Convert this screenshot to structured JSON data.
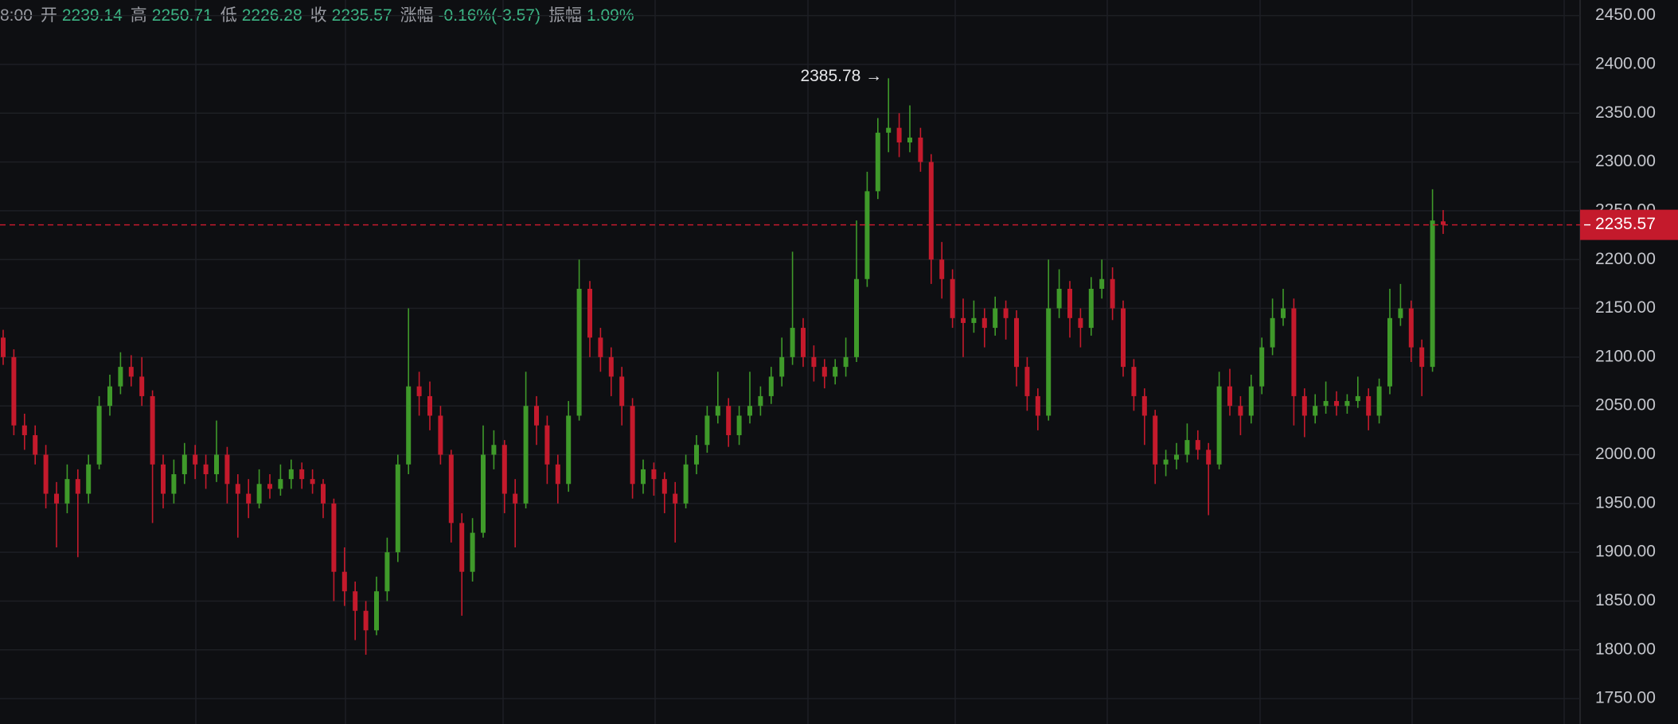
{
  "chart_data": {
    "type": "candlestick",
    "info": [
      {
        "label": "8:00"
      },
      {
        "label": "开",
        "value": "2239.14"
      },
      {
        "label": "高",
        "value": "2250.71"
      },
      {
        "label": "低",
        "value": "2226.28"
      },
      {
        "label": "收",
        "value": "2235.57"
      },
      {
        "label": "涨幅",
        "value": "-0.16%(-3.57)"
      },
      {
        "label": "振幅",
        "value": "1.09%"
      }
    ],
    "up_color": "#3f9a2a",
    "down_color": "#c41a2c",
    "ylim": [
      1724,
      2466
    ],
    "yticks": [
      {
        "value": 1750,
        "label": "1750.00"
      },
      {
        "value": 1800,
        "label": "1800.00"
      },
      {
        "value": 1850,
        "label": "1850.00"
      },
      {
        "value": 1900,
        "label": "1900.00"
      },
      {
        "value": 1950,
        "label": "1950.00"
      },
      {
        "value": 2000,
        "label": "2000.00"
      },
      {
        "value": 2050,
        "label": "2050.00"
      },
      {
        "value": 2100,
        "label": "2100.00"
      },
      {
        "value": 2150,
        "label": "2150.00"
      },
      {
        "value": 2200,
        "label": "2200.00"
      },
      {
        "value": 2250,
        "label": "2250.00"
      },
      {
        "value": 2300,
        "label": "2300.00"
      },
      {
        "value": 2350,
        "label": "2350.00"
      },
      {
        "value": 2400,
        "label": "2400.00"
      },
      {
        "value": 2450,
        "label": "2450.00"
      }
    ],
    "grid": true,
    "annotation": {
      "value": 2385.78,
      "label": "2385.78 →"
    },
    "last_price": {
      "value": 2235.57,
      "label": "2235.57"
    },
    "ohlc": [
      [
        2120,
        2128,
        2092,
        2100
      ],
      [
        2100,
        2108,
        2020,
        2030
      ],
      [
        2030,
        2042,
        2005,
        2020
      ],
      [
        2020,
        2030,
        1990,
        2000
      ],
      [
        2000,
        2010,
        1945,
        1960
      ],
      [
        1960,
        1972,
        1905,
        1950
      ],
      [
        1950,
        1990,
        1940,
        1975
      ],
      [
        1975,
        1985,
        1895,
        1960
      ],
      [
        1960,
        2000,
        1950,
        1990
      ],
      [
        1990,
        2060,
        1985,
        2050
      ],
      [
        2050,
        2082,
        2040,
        2070
      ],
      [
        2070,
        2105,
        2062,
        2090
      ],
      [
        2090,
        2102,
        2070,
        2080
      ],
      [
        2080,
        2100,
        2050,
        2060
      ],
      [
        2060,
        2066,
        1930,
        1990
      ],
      [
        1990,
        2000,
        1945,
        1960
      ],
      [
        1960,
        1995,
        1950,
        1980
      ],
      [
        1980,
        2012,
        1970,
        2000
      ],
      [
        2000,
        2010,
        1975,
        1990
      ],
      [
        1990,
        2000,
        1965,
        1980
      ],
      [
        1980,
        2035,
        1972,
        2000
      ],
      [
        2000,
        2008,
        1950,
        1970
      ],
      [
        1970,
        1980,
        1915,
        1960
      ],
      [
        1960,
        1975,
        1935,
        1950
      ],
      [
        1950,
        1985,
        1945,
        1970
      ],
      [
        1970,
        1980,
        1955,
        1965
      ],
      [
        1965,
        1990,
        1958,
        1975
      ],
      [
        1975,
        1995,
        1965,
        1985
      ],
      [
        1985,
        1992,
        1965,
        1975
      ],
      [
        1975,
        1985,
        1960,
        1970
      ],
      [
        1970,
        1975,
        1935,
        1950
      ],
      [
        1950,
        1955,
        1850,
        1880
      ],
      [
        1880,
        1905,
        1845,
        1860
      ],
      [
        1860,
        1870,
        1810,
        1840
      ],
      [
        1840,
        1850,
        1795,
        1820
      ],
      [
        1820,
        1875,
        1815,
        1860
      ],
      [
        1860,
        1915,
        1850,
        1900
      ],
      [
        1900,
        2000,
        1890,
        1990
      ],
      [
        1990,
        2150,
        1980,
        2070
      ],
      [
        2070,
        2085,
        2040,
        2060
      ],
      [
        2060,
        2075,
        2025,
        2040
      ],
      [
        2040,
        2050,
        1990,
        2000
      ],
      [
        2000,
        2005,
        1910,
        1930
      ],
      [
        1930,
        1940,
        1835,
        1880
      ],
      [
        1880,
        1935,
        1870,
        1920
      ],
      [
        1920,
        2030,
        1915,
        2000
      ],
      [
        2000,
        2025,
        1985,
        2010
      ],
      [
        2010,
        2015,
        1940,
        1960
      ],
      [
        1960,
        1975,
        1905,
        1950
      ],
      [
        1950,
        2085,
        1945,
        2050
      ],
      [
        2050,
        2060,
        2010,
        2030
      ],
      [
        2030,
        2040,
        1970,
        1990
      ],
      [
        1990,
        2000,
        1950,
        1970
      ],
      [
        1970,
        2055,
        1962,
        2040
      ],
      [
        2040,
        2200,
        2035,
        2170
      ],
      [
        2170,
        2178,
        2100,
        2120
      ],
      [
        2120,
        2130,
        2085,
        2100
      ],
      [
        2100,
        2110,
        2060,
        2080
      ],
      [
        2080,
        2090,
        2030,
        2050
      ],
      [
        2050,
        2058,
        1955,
        1970
      ],
      [
        1970,
        1995,
        1960,
        1985
      ],
      [
        1985,
        1992,
        1958,
        1975
      ],
      [
        1975,
        1982,
        1940,
        1960
      ],
      [
        1960,
        1972,
        1910,
        1950
      ],
      [
        1950,
        2000,
        1945,
        1990
      ],
      [
        1990,
        2020,
        1980,
        2010
      ],
      [
        2010,
        2050,
        2002,
        2040
      ],
      [
        2040,
        2085,
        2032,
        2050
      ],
      [
        2050,
        2058,
        2008,
        2020
      ],
      [
        2020,
        2050,
        2010,
        2040
      ],
      [
        2040,
        2085,
        2032,
        2050
      ],
      [
        2050,
        2070,
        2040,
        2060
      ],
      [
        2060,
        2090,
        2052,
        2080
      ],
      [
        2080,
        2120,
        2070,
        2100
      ],
      [
        2100,
        2208,
        2092,
        2130
      ],
      [
        2130,
        2140,
        2090,
        2100
      ],
      [
        2100,
        2112,
        2075,
        2090
      ],
      [
        2090,
        2098,
        2068,
        2080
      ],
      [
        2080,
        2098,
        2072,
        2090
      ],
      [
        2090,
        2120,
        2080,
        2100
      ],
      [
        2100,
        2240,
        2095,
        2180
      ],
      [
        2180,
        2290,
        2172,
        2270
      ],
      [
        2270,
        2345,
        2262,
        2330
      ],
      [
        2330,
        2385.78,
        2310,
        2335
      ],
      [
        2335,
        2350,
        2305,
        2320
      ],
      [
        2320,
        2358,
        2310,
        2325
      ],
      [
        2325,
        2335,
        2290,
        2300
      ],
      [
        2300,
        2308,
        2175,
        2200
      ],
      [
        2200,
        2218,
        2160,
        2180
      ],
      [
        2180,
        2190,
        2130,
        2140
      ],
      [
        2140,
        2160,
        2100,
        2135
      ],
      [
        2135,
        2158,
        2125,
        2140
      ],
      [
        2140,
        2150,
        2110,
        2130
      ],
      [
        2130,
        2162,
        2122,
        2150
      ],
      [
        2150,
        2158,
        2118,
        2140
      ],
      [
        2140,
        2148,
        2070,
        2090
      ],
      [
        2090,
        2100,
        2045,
        2060
      ],
      [
        2060,
        2068,
        2025,
        2040
      ],
      [
        2040,
        2200,
        2035,
        2150
      ],
      [
        2150,
        2190,
        2140,
        2170
      ],
      [
        2170,
        2178,
        2120,
        2140
      ],
      [
        2140,
        2150,
        2110,
        2130
      ],
      [
        2130,
        2182,
        2122,
        2170
      ],
      [
        2170,
        2200,
        2160,
        2180
      ],
      [
        2180,
        2192,
        2138,
        2150
      ],
      [
        2150,
        2158,
        2080,
        2090
      ],
      [
        2090,
        2098,
        2045,
        2060
      ],
      [
        2060,
        2068,
        2010,
        2040
      ],
      [
        2040,
        2046,
        1970,
        1990
      ],
      [
        1990,
        2005,
        1978,
        1995
      ],
      [
        1995,
        2012,
        1985,
        2000
      ],
      [
        2000,
        2032,
        1992,
        2015
      ],
      [
        2015,
        2025,
        1995,
        2005
      ],
      [
        2005,
        2012,
        1938,
        1990
      ],
      [
        1990,
        2085,
        1985,
        2070
      ],
      [
        2070,
        2088,
        2040,
        2050
      ],
      [
        2050,
        2060,
        2020,
        2040
      ],
      [
        2040,
        2082,
        2032,
        2070
      ],
      [
        2070,
        2120,
        2062,
        2110
      ],
      [
        2110,
        2160,
        2102,
        2140
      ],
      [
        2140,
        2170,
        2132,
        2150
      ],
      [
        2150,
        2160,
        2030,
        2060
      ],
      [
        2060,
        2068,
        2018,
        2040
      ],
      [
        2040,
        2062,
        2032,
        2050
      ],
      [
        2050,
        2075,
        2042,
        2055
      ],
      [
        2055,
        2065,
        2040,
        2050
      ],
      [
        2050,
        2062,
        2042,
        2055
      ],
      [
        2055,
        2080,
        2048,
        2060
      ],
      [
        2060,
        2068,
        2025,
        2040
      ],
      [
        2040,
        2078,
        2032,
        2070
      ],
      [
        2070,
        2170,
        2062,
        2140
      ],
      [
        2140,
        2175,
        2132,
        2150
      ],
      [
        2150,
        2158,
        2095,
        2110
      ],
      [
        2110,
        2118,
        2060,
        2090
      ],
      [
        2090,
        2272,
        2085,
        2240
      ],
      [
        2239.14,
        2250.71,
        2226.28,
        2235.57
      ]
    ]
  }
}
